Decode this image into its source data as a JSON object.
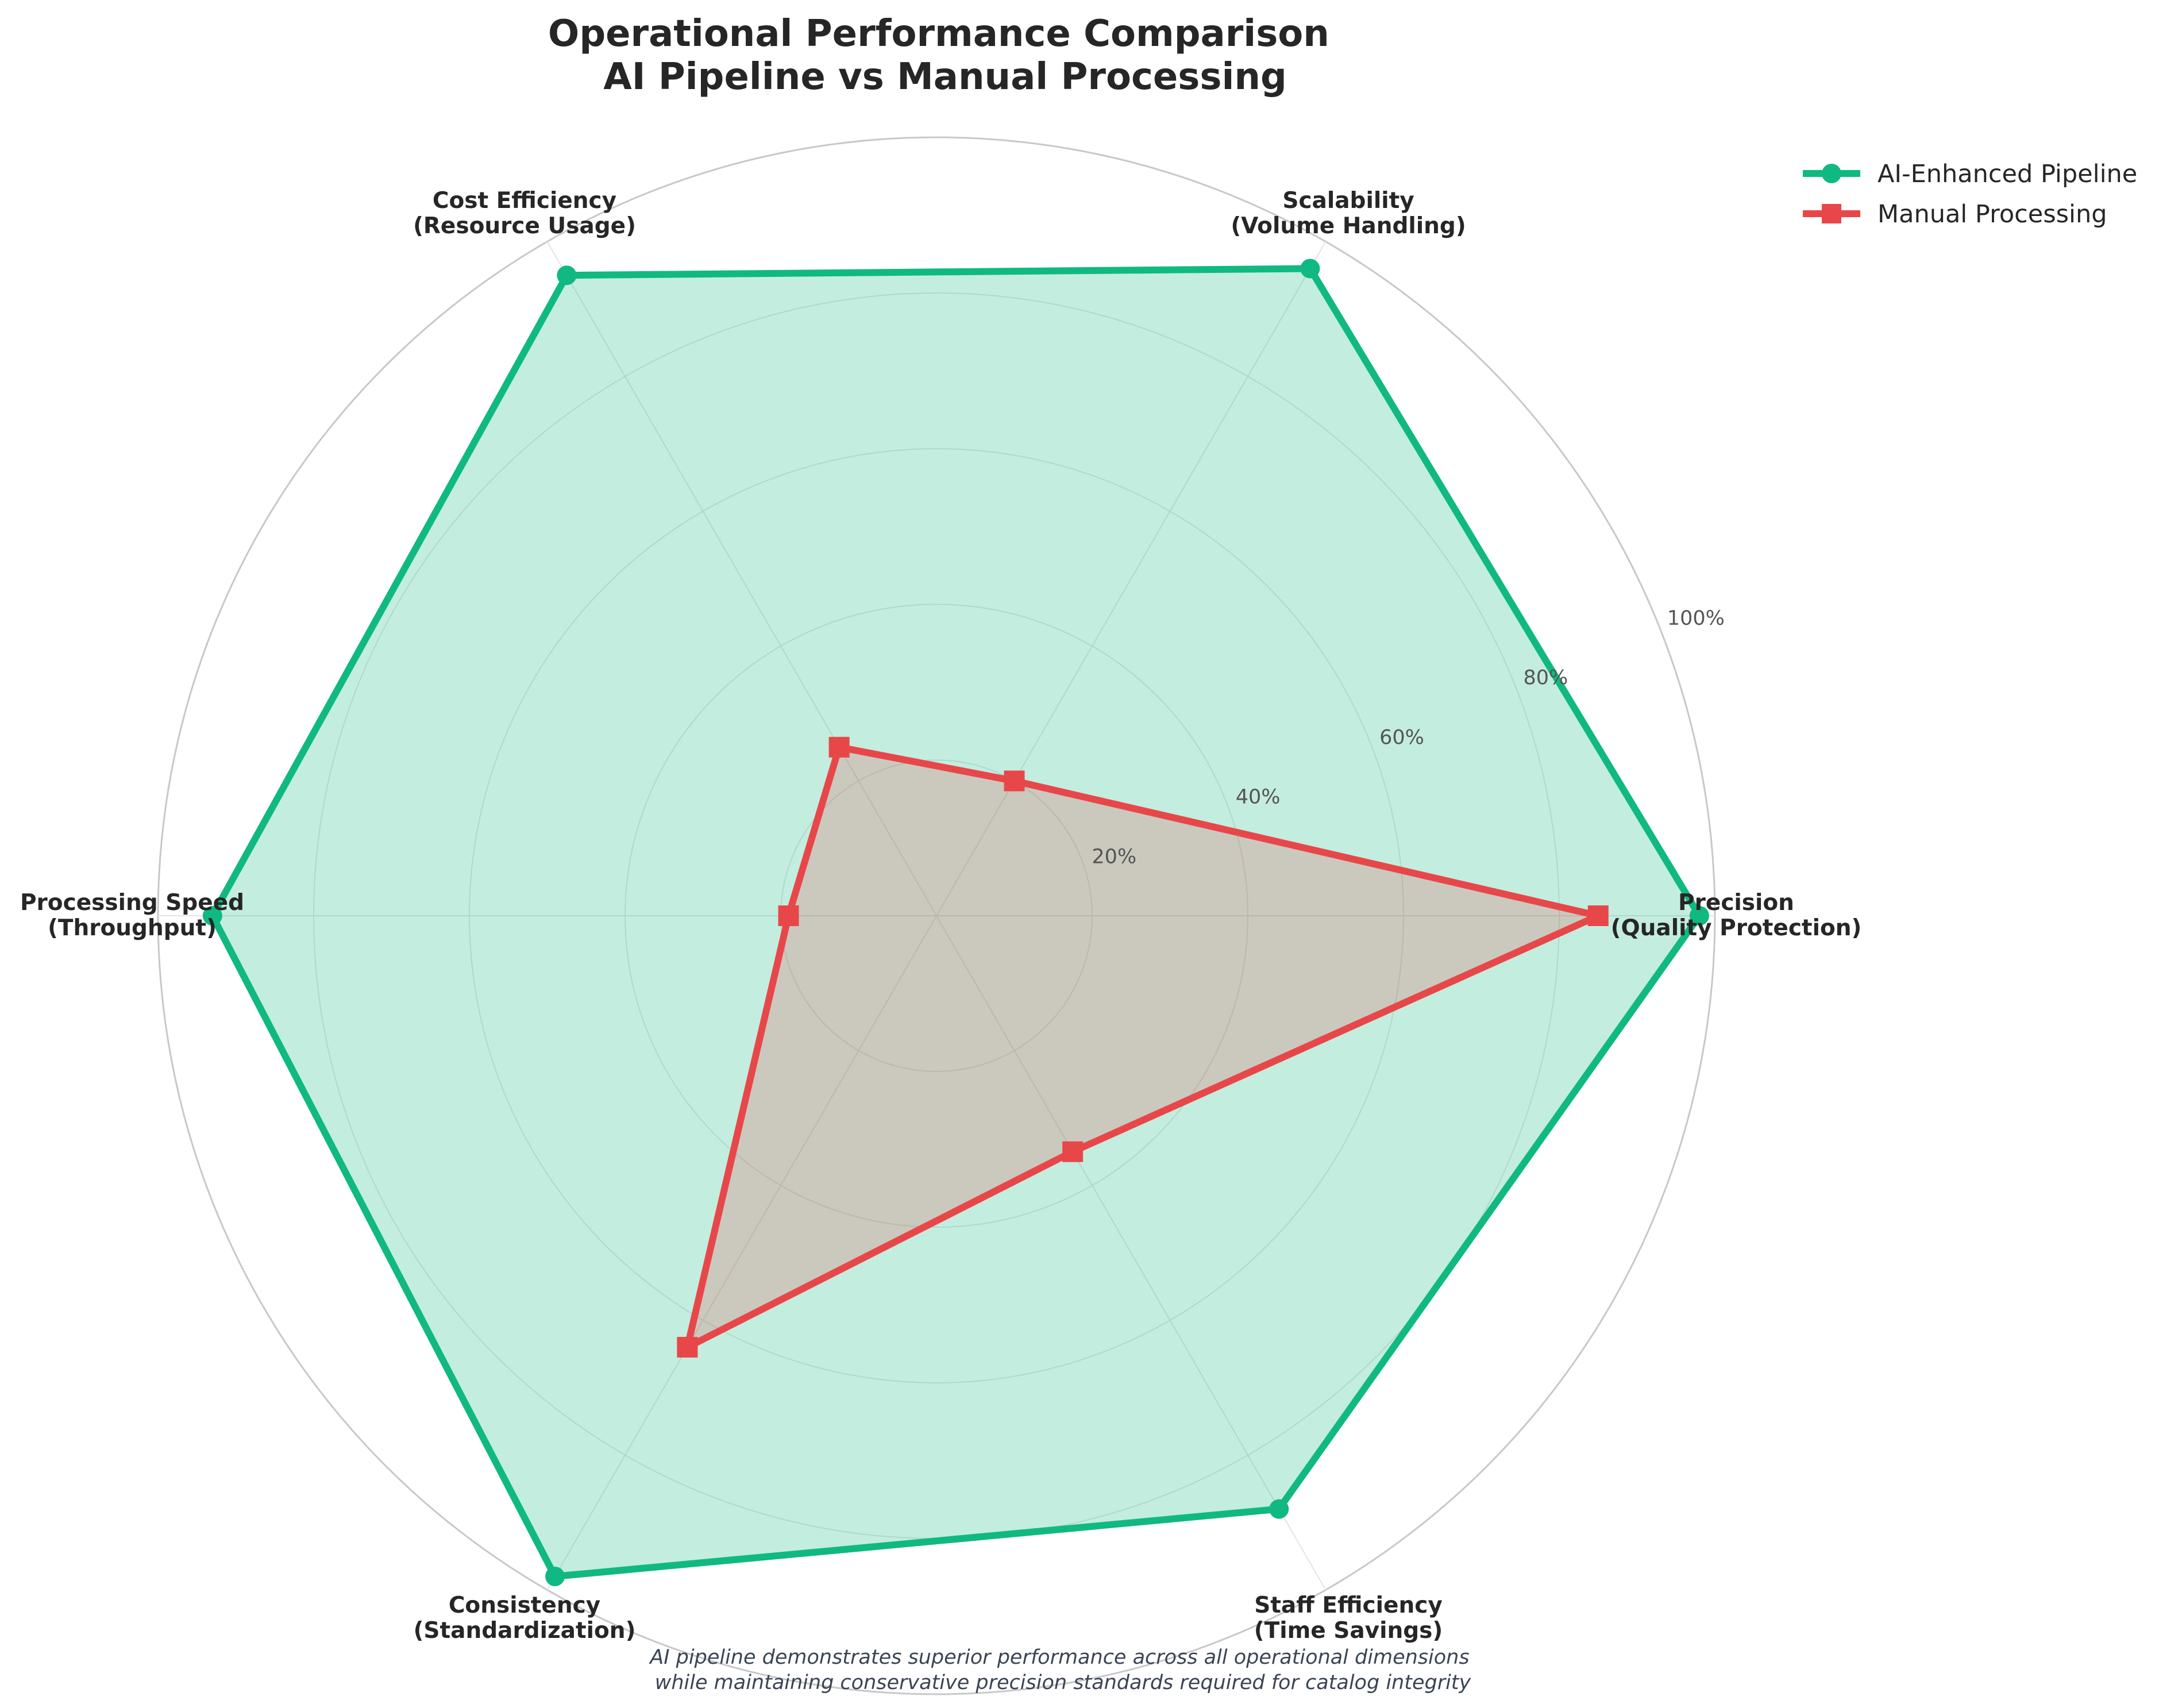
{
  "chart_data": {
    "type": "radar",
    "title_lines": [
      "Operational Performance Comparison",
      "AI Pipeline vs Manual Processing"
    ],
    "axes": [
      {
        "lines": [
          "Precision",
          "(Quality Protection)"
        ]
      },
      {
        "lines": [
          "Scalability",
          "(Volume Handling)"
        ]
      },
      {
        "lines": [
          "Cost Efficiency",
          "(Resource Usage)"
        ]
      },
      {
        "lines": [
          "Processing Speed",
          "(Throughput)"
        ]
      },
      {
        "lines": [
          "Consistency",
          "(Standardization)"
        ]
      },
      {
        "lines": [
          "Staff Efficiency",
          "(Time Savings)"
        ]
      }
    ],
    "rlim": [
      0,
      100
    ],
    "r_ticks": [
      20,
      40,
      60,
      80,
      100
    ],
    "r_tick_labels": [
      "20%",
      "40%",
      "60%",
      "80%",
      "100%"
    ],
    "grid": true,
    "legend_position": "top-right",
    "series": [
      {
        "name": "AI-Enhanced Pipeline",
        "values": [
          98,
          96,
          95,
          93,
          98,
          88
        ],
        "color": "#10b981",
        "marker": "circle"
      },
      {
        "name": "Manual Processing",
        "values": [
          85,
          20,
          25,
          19,
          64,
          35
        ],
        "color": "#e8474a",
        "marker": "square"
      }
    ],
    "caption_lines": [
      "AI pipeline demonstrates superior performance across all operational dimensions",
      "while maintaining conservative precision standards required for catalog integrity"
    ]
  }
}
